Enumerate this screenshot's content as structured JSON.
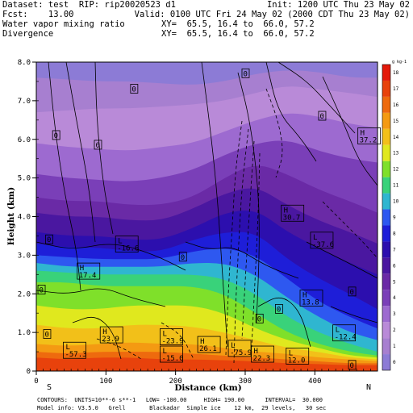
{
  "header": {
    "line1_left": "Dataset: test  RIP: rip20020523 d1",
    "line1_right": "Init: 1200 UTC Thu 23 May 02",
    "line2_left": "Fcst:    13.00",
    "line2_right": "Valid: 0100 UTC Fri 24 May 02 (2000 CDT Thu 23 May 02)",
    "line3_left": "Water vapor mixing ratio",
    "line3_right": "XY=  65.5, 16.4 to  66.0, 57.2",
    "line4_left": "Divergence",
    "line4_right": "XY=  65.5, 16.4 to  66.0, 57.2"
  },
  "footer": {
    "line1": "CONTOURS:  UNITS=10**-6 s**-1   LOW= -100.00     HIGH= 190.00      INTERVAL=  30.000",
    "line2": "Model info: V3.5.0   Grell       Blackadar  Simple ice    12 km,  29 levels,   30 sec"
  },
  "direction_labels": {
    "left": "S",
    "right": "N"
  },
  "chart_data": {
    "type": "heatmap",
    "xlabel": "Distance (km)",
    "ylabel": "Height (km)",
    "xlim": [
      0,
      490
    ],
    "ylim": [
      0,
      8.0
    ],
    "x_ticks": [
      0,
      100,
      200,
      300,
      400
    ],
    "y_ticks": [
      "0",
      "1.0",
      "2.0",
      "3.0",
      "4.0",
      "5.0",
      "6.0",
      "7.0",
      "8.0"
    ],
    "colorbar": {
      "unit": "g kg-1",
      "labels": [
        "0",
        "1",
        "2",
        "3",
        "4",
        "5",
        "6",
        "7",
        "8",
        "9",
        "10",
        "11",
        "12",
        "13",
        "14",
        "15",
        "16",
        "17",
        "18"
      ],
      "colors": [
        "#8c7bd6",
        "#a77fd0",
        "#b98ad8",
        "#9d6ad0",
        "#7a3fb8",
        "#6a2aa6",
        "#4a17a0",
        "#2c0fae",
        "#1e1ed8",
        "#2e58f0",
        "#2fb6d0",
        "#39d27a",
        "#7fe02a",
        "#e0e81e",
        "#f2c019",
        "#f49a12",
        "#ee6a0e",
        "#e8420c",
        "#e4190a"
      ]
    },
    "humidity_layers_km": [
      {
        "level": 1,
        "top": [
          7.6,
          7.55,
          7.5,
          7.5,
          7.45,
          7.4,
          7.5,
          7.7,
          7.8,
          7.75,
          7.6,
          7.6
        ]
      },
      {
        "level": 2,
        "top": [
          6.7,
          6.75,
          6.8,
          6.8,
          6.85,
          6.9,
          7.0,
          7.2,
          7.4,
          7.3,
          7.2,
          7.1
        ]
      },
      {
        "level": 3,
        "top": [
          5.9,
          5.8,
          5.75,
          5.7,
          5.8,
          5.9,
          6.2,
          6.5,
          6.7,
          6.6,
          6.4,
          6.3
        ]
      },
      {
        "level": 4,
        "top": [
          5.1,
          5.0,
          4.95,
          4.9,
          5.0,
          5.2,
          5.6,
          5.9,
          6.0,
          5.7,
          5.5,
          5.4
        ]
      },
      {
        "level": 5,
        "top": [
          4.5,
          4.4,
          4.4,
          4.3,
          4.3,
          4.5,
          5.0,
          5.4,
          5.1,
          4.7,
          4.4,
          4.1
        ]
      },
      {
        "level": 6,
        "top": [
          4.1,
          4.0,
          4.0,
          3.9,
          3.9,
          4.2,
          4.6,
          4.8,
          4.3,
          3.9,
          3.6,
          3.3
        ]
      },
      {
        "level": 7,
        "top": [
          3.6,
          3.5,
          3.5,
          3.4,
          3.4,
          3.7,
          4.1,
          4.2,
          3.6,
          3.2,
          2.8,
          2.5
        ]
      },
      {
        "level": 8,
        "top": [
          3.3,
          3.2,
          3.2,
          3.1,
          3.1,
          3.4,
          3.6,
          3.6,
          2.9,
          2.4,
          2.0,
          1.6
        ]
      },
      {
        "level": 9,
        "top": [
          3.0,
          2.95,
          2.9,
          2.9,
          2.9,
          3.1,
          3.2,
          3.0,
          2.4,
          1.8,
          1.4,
          1.1
        ]
      },
      {
        "level": 10,
        "top": [
          2.8,
          2.7,
          2.7,
          2.7,
          2.7,
          2.8,
          2.8,
          2.5,
          1.9,
          1.4,
          1.0,
          0.8
        ]
      },
      {
        "level": 11,
        "top": [
          2.6,
          2.55,
          2.5,
          2.5,
          2.5,
          2.5,
          2.4,
          2.0,
          1.4,
          1.0,
          0.7,
          0.5
        ]
      },
      {
        "level": 12,
        "top": [
          2.3,
          2.3,
          2.2,
          2.2,
          2.2,
          2.2,
          2.0,
          1.5,
          1.0,
          0.7,
          0.5,
          0.4
        ]
      },
      {
        "level": 13,
        "top": [
          1.7,
          1.6,
          1.6,
          1.7,
          1.7,
          1.7,
          1.5,
          1.1,
          0.8,
          0.6,
          0.4,
          0.35
        ]
      },
      {
        "level": 14,
        "top": [
          1.2,
          1.1,
          1.1,
          1.2,
          1.2,
          1.15,
          1.0,
          0.8,
          0.6,
          0.5,
          0.35,
          0.3
        ]
      },
      {
        "level": 15,
        "top": [
          0.7,
          0.65,
          0.7,
          0.75,
          0.7,
          0.7,
          0.6,
          0.5,
          0.45,
          0.35,
          0.3,
          0.25
        ]
      },
      {
        "level": 16,
        "top": [
          0.5,
          0.45,
          0.5,
          0.5,
          0.5,
          0.45,
          0.4,
          0.35,
          0.3,
          0.25,
          0.2,
          0.2
        ]
      },
      {
        "level": 17,
        "top": [
          0.35,
          0.3,
          0.35,
          0.35,
          0.3,
          0.3,
          0.28,
          0.25,
          0.2,
          0.18,
          0.15,
          0.15
        ]
      }
    ],
    "layer_x_km": [
      0,
      45,
      90,
      135,
      180,
      225,
      270,
      315,
      360,
      405,
      450,
      490
    ],
    "extremes": [
      {
        "kind": "L",
        "value": "-16.6",
        "x": 130,
        "y": 3.1
      },
      {
        "kind": "H",
        "value": "17.4",
        "x": 75,
        "y": 2.4
      },
      {
        "kind": "H",
        "value": "30.7",
        "x": 368,
        "y": 3.9
      },
      {
        "kind": "L",
        "value": "-37.6",
        "x": 410,
        "y": 3.2
      },
      {
        "kind": "H",
        "value": "37.2",
        "x": 478,
        "y": 5.9
      },
      {
        "kind": "H",
        "value": "13.8",
        "x": 395,
        "y": 1.7
      },
      {
        "kind": "L",
        "value": "-12.4",
        "x": 442,
        "y": 0.8
      },
      {
        "kind": "H",
        "value": "23.9",
        "x": 108,
        "y": 0.75
      },
      {
        "kind": "L",
        "value": "-23.9",
        "x": 194,
        "y": 0.7
      },
      {
        "kind": "H",
        "value": "26.1",
        "x": 248,
        "y": 0.5
      },
      {
        "kind": "L",
        "value": "-57.3",
        "x": 55,
        "y": 0.35
      },
      {
        "kind": "L",
        "value": "-15.0",
        "x": 194,
        "y": 0.25
      },
      {
        "kind": "L",
        "value": "-75.9",
        "x": 292,
        "y": 0.4
      },
      {
        "kind": "H",
        "value": "22.3",
        "x": 325,
        "y": 0.25
      },
      {
        "kind": "L",
        "value": "12.0",
        "x": 375,
        "y": 0.2
      }
    ],
    "zero_labels": [
      {
        "value": "0",
        "x": 140,
        "y": 7.3
      },
      {
        "value": "0",
        "x": 300,
        "y": 7.7
      },
      {
        "value": "0",
        "x": 410,
        "y": 6.6
      },
      {
        "value": "0",
        "x": 28,
        "y": 6.1
      },
      {
        "value": "0",
        "x": 88,
        "y": 5.85
      },
      {
        "value": "0",
        "x": 18,
        "y": 3.4
      },
      {
        "value": "0",
        "x": 7,
        "y": 2.1
      },
      {
        "value": "0",
        "x": 210,
        "y": 2.95
      },
      {
        "value": "0",
        "x": 348,
        "y": 1.6
      },
      {
        "value": "0",
        "x": 320,
        "y": 1.35
      },
      {
        "value": "0",
        "x": 453,
        "y": 2.05
      },
      {
        "value": "0",
        "x": 15,
        "y": 0.95
      },
      {
        "value": "0",
        "x": 453,
        "y": 0.15
      }
    ]
  }
}
